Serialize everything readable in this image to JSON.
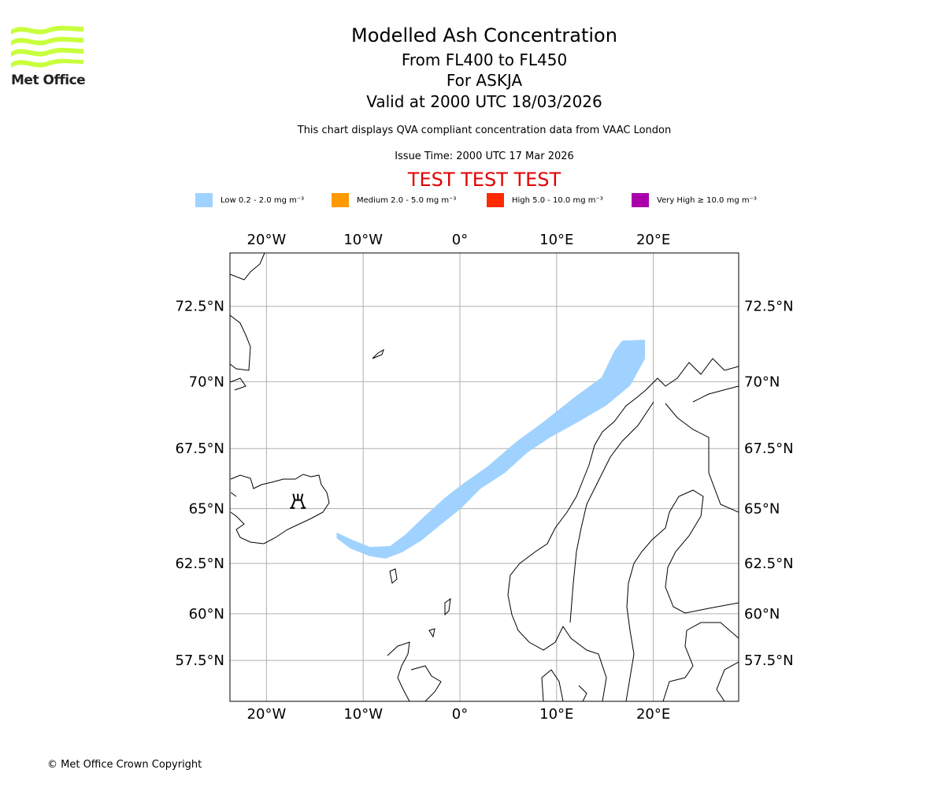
{
  "header": {
    "title": "Modelled Ash Concentration",
    "flight_levels": "From FL400 to FL450",
    "volcano": "For ASKJA",
    "valid": "Valid at 2000 UTC 18/03/2026",
    "description": "This chart displays QVA compliant concentration data from VAAC London",
    "issue_time": "Issue Time: 2000 UTC 17 Mar 2026",
    "test_banner": "TEST TEST TEST"
  },
  "logo": {
    "text": "Met Office"
  },
  "legend": [
    {
      "label": "Low 0.2 - 2.0 mg m⁻³",
      "color": "#a0d2ff"
    },
    {
      "label": "Medium 2.0 - 5.0 mg m⁻³",
      "color": "#ff9900"
    },
    {
      "label": "High 5.0 - 10.0 mg m⁻³",
      "color": "#ff2a00"
    },
    {
      "label": "Very High ≥ 10.0 mg m⁻³",
      "color": "#aa00aa"
    }
  ],
  "footer": {
    "copyright": "© Met Office Crown Copyright"
  },
  "chart_data": {
    "type": "map",
    "projection": "mercator",
    "lon_range": [
      -23.8,
      28.8
    ],
    "lat_range": [
      55.6,
      74.3
    ],
    "grid": true,
    "lon_ticks": [
      {
        "value": -20,
        "label": "20°W"
      },
      {
        "value": -10,
        "label": "10°W"
      },
      {
        "value": 0,
        "label": "0°"
      },
      {
        "value": 10,
        "label": "10°E"
      },
      {
        "value": 20,
        "label": "20°E"
      }
    ],
    "lat_ticks": [
      {
        "value": 72.5,
        "label": "72.5°N"
      },
      {
        "value": 70,
        "label": "70°N"
      },
      {
        "value": 67.5,
        "label": "67.5°N"
      },
      {
        "value": 65,
        "label": "65°N"
      },
      {
        "value": 62.5,
        "label": "62.5°N"
      },
      {
        "value": 60,
        "label": "60°N"
      },
      {
        "value": 57.5,
        "label": "57.5°N"
      }
    ],
    "volcano": {
      "name": "ASKJA",
      "lon": -16.75,
      "lat": 65.03
    },
    "ash_areas": [
      {
        "level": "Low",
        "polygon_lonlat": [
          [
            -12.7,
            63.91
          ],
          [
            -11.3,
            63.62
          ],
          [
            -9.3,
            63.26
          ],
          [
            -7.2,
            63.3
          ],
          [
            -5.6,
            63.84
          ],
          [
            -3.6,
            64.67
          ],
          [
            -1.5,
            65.47
          ],
          [
            0.5,
            66.1
          ],
          [
            2.9,
            66.77
          ],
          [
            5.8,
            67.74
          ],
          [
            8.6,
            68.5
          ],
          [
            11.9,
            69.44
          ],
          [
            14.7,
            70.15
          ],
          [
            16.0,
            71.05
          ],
          [
            16.8,
            71.39
          ],
          [
            19.1,
            71.42
          ],
          [
            19.1,
            70.8
          ],
          [
            17.6,
            69.88
          ],
          [
            15.1,
            69.15
          ],
          [
            12.3,
            68.56
          ],
          [
            9.4,
            67.97
          ],
          [
            7.0,
            67.37
          ],
          [
            4.6,
            66.53
          ],
          [
            2.1,
            65.87
          ],
          [
            0.1,
            65.03
          ],
          [
            -2.0,
            64.31
          ],
          [
            -4.0,
            63.59
          ],
          [
            -6.0,
            63.04
          ],
          [
            -7.7,
            62.75
          ],
          [
            -9.3,
            62.86
          ],
          [
            -11.3,
            63.22
          ],
          [
            -12.7,
            63.69
          ]
        ]
      }
    ]
  }
}
